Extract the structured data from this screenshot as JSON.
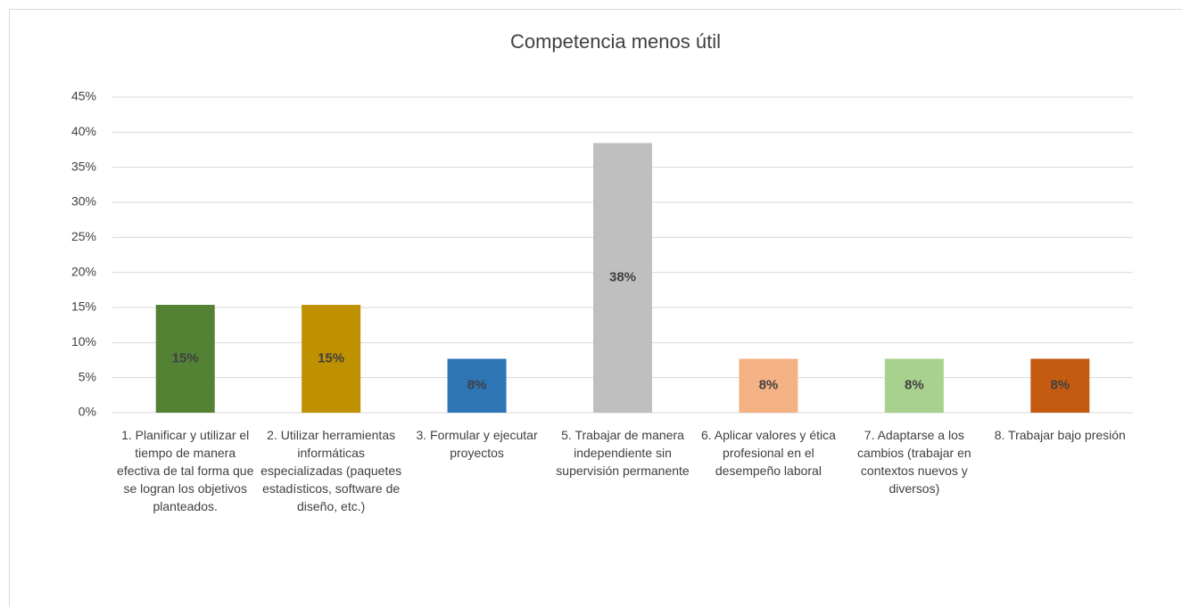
{
  "chart_data": {
    "type": "bar",
    "title": "Competencia menos útil",
    "categories": [
      "1. Planificar y utilizar el tiempo de manera efectiva de tal forma que se logran los objetivos planteados.",
      "2. Utilizar herramientas informáticas especializadas (paquetes estadísticos, software de diseño, etc.)",
      "3. Formular y ejecutar proyectos",
      "5. Trabajar de manera independiente sin supervisión permanente",
      "6. Aplicar valores y ética profesional en el desempeño laboral",
      "7. Adaptarse a los cambios (trabajar en contextos nuevos y diversos)",
      "8. Trabajar bajo presión"
    ],
    "values": [
      15.38,
      15.38,
      7.69,
      38.46,
      7.69,
      7.69,
      7.69
    ],
    "value_labels": [
      "15%",
      "15%",
      "8%",
      "38%",
      "8%",
      "8%",
      "8%"
    ],
    "colors": [
      "#548235",
      "#bf9000",
      "#2e75b6",
      "#bfbfbf",
      "#f4b183",
      "#a9d18e",
      "#c55a11"
    ],
    "ylim": [
      0,
      45
    ],
    "yticks": [
      {
        "value": 0,
        "label": "0%"
      },
      {
        "value": 5,
        "label": "5%"
      },
      {
        "value": 10,
        "label": "10%"
      },
      {
        "value": 15,
        "label": "15%"
      },
      {
        "value": 20,
        "label": "20%"
      },
      {
        "value": 25,
        "label": "25%"
      },
      {
        "value": 30,
        "label": "30%"
      },
      {
        "value": 35,
        "label": "35%"
      },
      {
        "value": 40,
        "label": "40%"
      },
      {
        "value": 45,
        "label": "45%"
      }
    ],
    "grid": true
  }
}
